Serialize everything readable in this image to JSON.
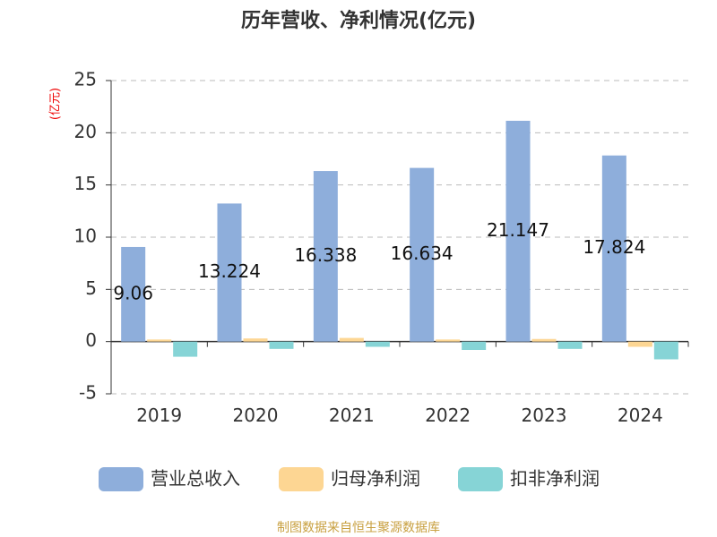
{
  "chart_data": {
    "type": "bar",
    "title": "历年营收、净利情况(亿元)",
    "y_axis_label": "(亿元)",
    "source": "制图数据来自恒生聚源数据库",
    "categories": [
      "2019",
      "2020",
      "2021",
      "2022",
      "2023",
      "2024"
    ],
    "series": [
      {
        "name": "营业总收入",
        "color": "#8eaedb",
        "values": [
          9.06,
          13.224,
          16.338,
          16.634,
          21.147,
          17.824
        ],
        "value_labels_shown": true
      },
      {
        "name": "归母净利润",
        "color": "#fdd693",
        "values": [
          0.2,
          0.3,
          0.35,
          0.2,
          0.25,
          -0.5
        ],
        "value_labels_shown": false
      },
      {
        "name": "扣非净利润",
        "color": "#86d4d6",
        "values": [
          -1.45,
          -0.7,
          -0.5,
          -0.8,
          -0.7,
          -1.7
        ],
        "value_labels_shown": false
      }
    ],
    "ylim": [
      -5,
      25
    ],
    "yticks": [
      -5,
      0,
      5,
      10,
      15,
      20,
      25
    ],
    "grid": true
  }
}
